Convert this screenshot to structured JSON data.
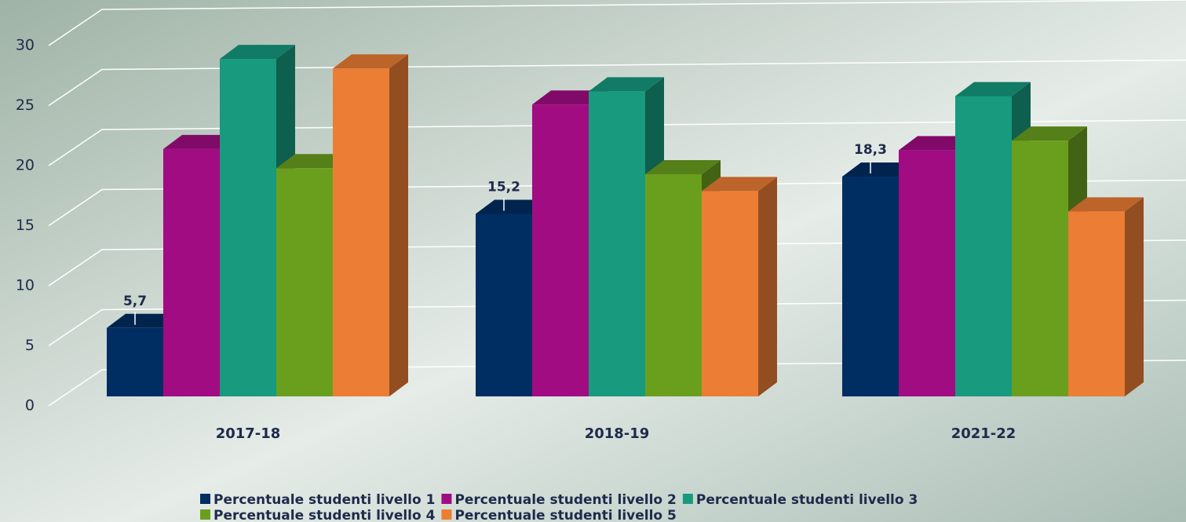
{
  "chart_data": {
    "type": "bar3d",
    "categories": [
      "2017-18",
      "2018-19",
      "2021-22"
    ],
    "series": [
      {
        "name": "Percentuale studenti livello 1",
        "color": "#002d62",
        "values": [
          5.7,
          15.2,
          18.3
        ],
        "value_labels": [
          "5,7",
          "15,2",
          "18,3"
        ]
      },
      {
        "name": "Percentuale studenti livello 2",
        "color": "#a10c82",
        "values": [
          20.6,
          24.3,
          20.5
        ]
      },
      {
        "name": "Percentuale studenti livello 3",
        "color": "#179a7e",
        "values": [
          28.1,
          25.4,
          25.0
        ]
      },
      {
        "name": "Percentuale studenti livello 4",
        "color": "#6a9f1e",
        "values": [
          19.0,
          18.5,
          21.3
        ]
      },
      {
        "name": "Percentuale studenti livello 5",
        "color": "#ec7d35",
        "values": [
          27.3,
          17.1,
          15.4
        ]
      }
    ],
    "ylim": [
      0,
      30
    ],
    "yticks": [
      0,
      5,
      10,
      15,
      20,
      25,
      30
    ],
    "grid": true,
    "legend": "bottom"
  }
}
